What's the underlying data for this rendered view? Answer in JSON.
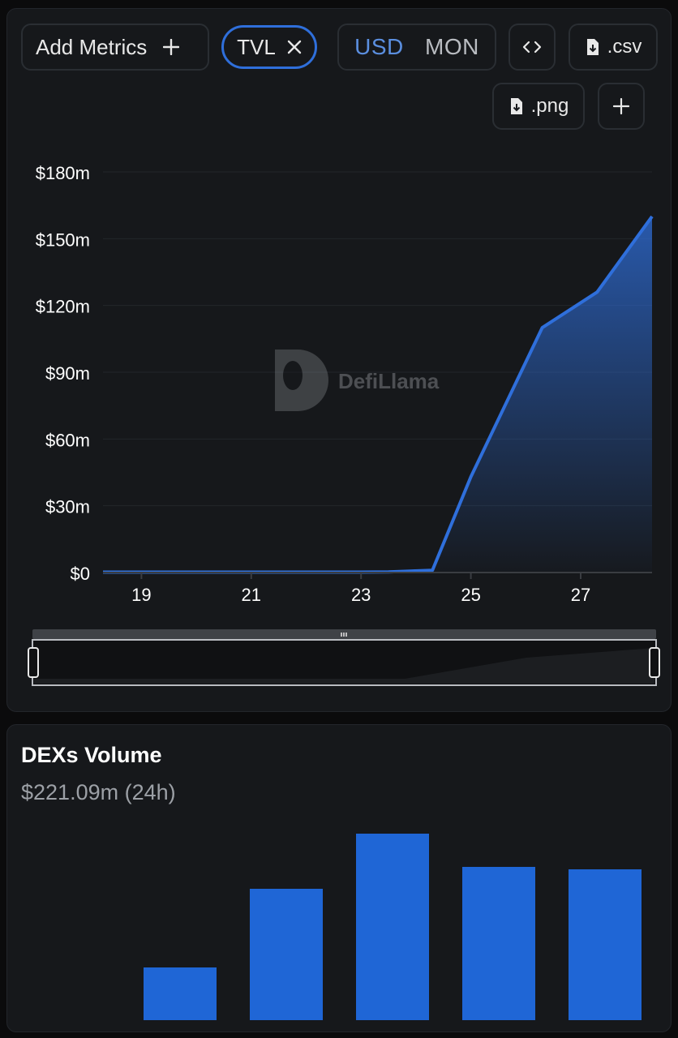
{
  "toolbar": {
    "add_metrics_label": "Add Metrics",
    "add_metrics_icon": "plus-icon",
    "active_metric": "TVL",
    "active_metric_icon": "close-icon",
    "currency_usd": "USD",
    "currency_mon": "MON",
    "embed_icon": "code-icon",
    "csv_label": ".csv",
    "csv_icon": "file-download-icon",
    "png_label": ".png",
    "png_icon": "file-download-icon",
    "more_icon": "plus-icon"
  },
  "watermark": "DefiLlama",
  "colors": {
    "accent": "#2f6fdb",
    "bar": "#1f66d6",
    "active_currency": "#5b8fe0"
  },
  "chart_data": [
    {
      "type": "area",
      "series": [
        {
          "name": "TVL",
          "x": [
            18.3,
            19,
            20,
            21,
            22,
            23,
            23.5,
            24.3,
            25,
            26.3,
            27.3,
            28.3
          ],
          "values": [
            0.2,
            0.2,
            0.2,
            0.2,
            0.2,
            0.2,
            0.3,
            1,
            43,
            110,
            126,
            160
          ]
        }
      ],
      "yticks": [
        "$180m",
        "$150m",
        "$120m",
        "$90m",
        "$60m",
        "$30m",
        "$0"
      ],
      "ytick_values": [
        180,
        150,
        120,
        90,
        60,
        30,
        0
      ],
      "xticks": [
        "19",
        "21",
        "23",
        "25",
        "27"
      ],
      "xtick_values": [
        19,
        21,
        23,
        25,
        27
      ],
      "xlim": [
        18.3,
        28.3
      ],
      "ylim": [
        0,
        180
      ],
      "grid": true
    },
    {
      "type": "bar",
      "title": "DEXs Volume",
      "subtitle": "$221.09m (24h)",
      "values": [
        65,
        162,
        230,
        189,
        186
      ]
    }
  ]
}
